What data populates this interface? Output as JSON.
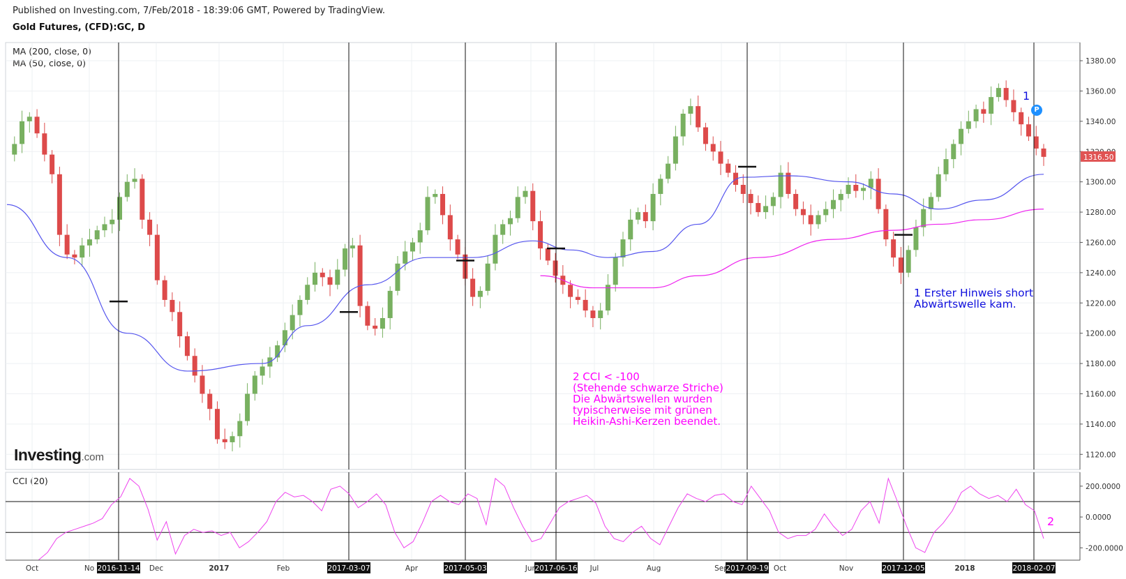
{
  "header": {
    "published": "Published on Investing.com, 7/Feb/2018 - 18:39:06 GMT, Powered by TradingView.",
    "symbol": "Gold Futures, (CFD):GC, D"
  },
  "legend": {
    "ma200": "MA (200, close, 0)",
    "ma50": "MA (50, close, 0)",
    "cci": "CCI (20)"
  },
  "logo": {
    "brand": "Investing",
    "suffix": ".com"
  },
  "annotations": {
    "magenta": [
      "2 CCI < -100",
      "(Stehende schwarze Striche)",
      "Die Abwärtswellen wurden",
      "typischerweise mit grünen",
      "Heikin-Ashi-Kerzen beendet."
    ],
    "blue": [
      "1 Erster Hinweis short",
      "Abwärtswelle kam."
    ],
    "marker1": "1",
    "marker2": "2",
    "badge": "P"
  },
  "colors": {
    "up": "#78b060",
    "down": "#dd4a4a",
    "ma50": "#5555ee",
    "ma200": "#ee22ee",
    "cci": "#ee44ee",
    "price_tag": "#e05353"
  },
  "chart_data": [
    {
      "type": "candlestick",
      "title": "Gold Futures, (CFD):GC, D",
      "ylim": [
        1110,
        1392
      ],
      "y_ticks": [
        "1380.00",
        "1360.00",
        "1340.00",
        "1320.00",
        "1300.00",
        "1280.00",
        "1260.00",
        "1240.00",
        "1220.00",
        "1200.00",
        "1180.00",
        "1160.00",
        "1140.00",
        "1120.00"
      ],
      "last_price": "1316.50",
      "x_labels": [
        "Oct",
        "No",
        "Dec",
        "2017",
        "Feb",
        "Apr",
        "Jun",
        "Jul",
        "Aug",
        "Sep",
        "Oct",
        "Nov",
        "2018"
      ],
      "date_markers": [
        "2016-11-14",
        "2017-03-07",
        "2017-05-03",
        "2017-06-16",
        "2017-09-19",
        "2017-12-05",
        "2018-02-07"
      ],
      "signal_levels": [
        1221,
        1214,
        1248,
        1256,
        1310,
        1265
      ],
      "price_path": [
        1318,
        1325,
        1340,
        1343,
        1332,
        1318,
        1305,
        1265,
        1252,
        1250,
        1258,
        1262,
        1268,
        1272,
        1275,
        1290,
        1300,
        1302,
        1275,
        1265,
        1235,
        1222,
        1214,
        1198,
        1185,
        1172,
        1160,
        1150,
        1130,
        1128,
        1132,
        1142,
        1160,
        1172,
        1178,
        1184,
        1192,
        1202,
        1212,
        1222,
        1232,
        1240,
        1237,
        1232,
        1242,
        1256,
        1258,
        1218,
        1205,
        1203,
        1210,
        1228,
        1246,
        1254,
        1260,
        1268,
        1290,
        1292,
        1278,
        1262,
        1252,
        1236,
        1224,
        1228,
        1246,
        1265,
        1272,
        1276,
        1290,
        1294,
        1274,
        1256,
        1248,
        1238,
        1232,
        1224,
        1222,
        1215,
        1210,
        1215,
        1232,
        1250,
        1262,
        1275,
        1280,
        1274,
        1292,
        1302,
        1312,
        1330,
        1345,
        1350,
        1336,
        1325,
        1320,
        1312,
        1306,
        1298,
        1292,
        1286,
        1280,
        1284,
        1290,
        1306,
        1292,
        1282,
        1278,
        1272,
        1278,
        1282,
        1288,
        1292,
        1298,
        1294,
        1296,
        1302,
        1282,
        1262,
        1250,
        1240,
        1255,
        1270,
        1282,
        1290,
        1305,
        1315,
        1325,
        1335,
        1340,
        1348,
        1345,
        1356,
        1362,
        1354,
        1346,
        1338,
        1330,
        1322,
        1316.5
      ],
      "series": [
        {
          "name": "MA (50, close, 0)",
          "x": [
            0,
            8,
            16,
            24,
            34,
            40,
            48,
            56,
            62,
            70,
            75,
            80,
            86,
            92,
            98,
            104,
            112,
            118,
            124,
            130,
            138
          ],
          "y": [
            1285,
            1250,
            1200,
            1175,
            1180,
            1205,
            1232,
            1250,
            1250,
            1261,
            1255,
            1250,
            1254,
            1272,
            1303,
            1304,
            1300,
            1292,
            1282,
            1288,
            1305
          ]
        },
        {
          "name": "MA (200, close, 0)",
          "x": [
            71,
            78,
            86,
            92,
            100,
            110,
            118,
            124,
            130,
            138
          ],
          "y": [
            1238,
            1230,
            1230,
            1238,
            1250,
            1262,
            1268,
            1272,
            1275,
            1282
          ]
        }
      ]
    },
    {
      "type": "line",
      "title": "CCI (20)",
      "ylim": [
        -280,
        290
      ],
      "y_ticks": [
        "200.0000",
        "0.0000",
        "-200.0000"
      ],
      "levels": [
        100,
        -100
      ],
      "series": [
        {
          "name": "CCI (20)",
          "values": [
            -280,
            -230,
            -140,
            -100,
            -80,
            -60,
            -40,
            -10,
            80,
            130,
            250,
            200,
            50,
            -150,
            -30,
            -240,
            -120,
            -80,
            -100,
            -90,
            -120,
            -100,
            -200,
            -160,
            -100,
            -30,
            100,
            160,
            130,
            140,
            100,
            40,
            180,
            200,
            150,
            60,
            100,
            150,
            80,
            -100,
            -200,
            -160,
            -40,
            100,
            140,
            100,
            80,
            150,
            120,
            -50,
            250,
            200,
            60,
            -60,
            -160,
            -140,
            -40,
            60,
            100,
            120,
            140,
            90,
            -60,
            -140,
            -160,
            -100,
            -60,
            -140,
            -180,
            -60,
            60,
            150,
            120,
            100,
            140,
            150,
            100,
            80,
            200,
            120,
            40,
            -100,
            -140,
            -120,
            -120,
            -80,
            20,
            -60,
            -120,
            -80,
            40,
            100,
            -40,
            250,
            100,
            -60,
            -200,
            -230,
            -100,
            -40,
            40,
            160,
            200,
            150,
            120,
            140,
            100,
            180,
            80,
            40,
            -140
          ]
        }
      ]
    }
  ]
}
